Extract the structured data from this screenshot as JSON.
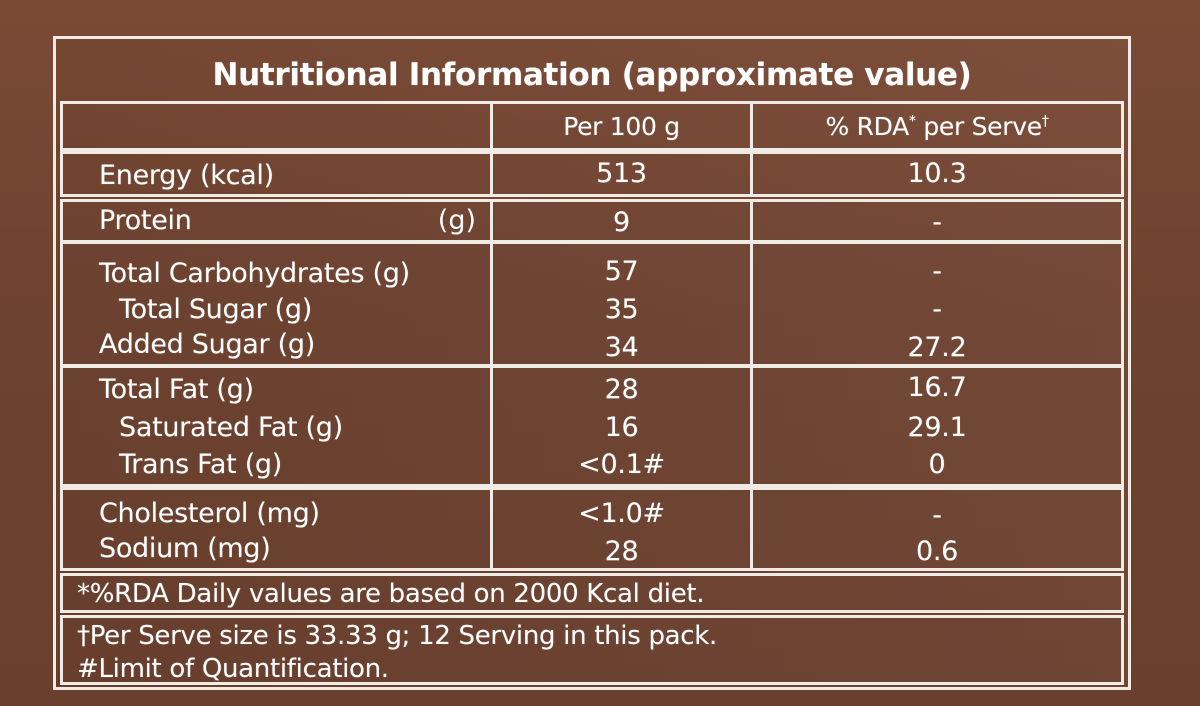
{
  "title": "Nutritional Information (approximate value)",
  "columns": {
    "per100g": "Per 100 g",
    "rda_prefix": "% RDA",
    "rda_star": "*",
    "rda_suffix": " per Serve",
    "rda_dagger": "†"
  },
  "rows": {
    "energy": {
      "label": "Energy (kcal)",
      "per100": "513",
      "rda": "10.3"
    },
    "protein": {
      "label": "Protein",
      "unit": "(g)",
      "per100": "9",
      "rda": "-"
    },
    "carbs": {
      "label": "Total Carbohydrates (g)",
      "per100": "57",
      "rda": "-"
    },
    "total_sugar": {
      "label": "Total Sugar (g)",
      "per100": "35",
      "rda": "-"
    },
    "added_sugar": {
      "label": "Added Sugar (g)",
      "per100": "34",
      "rda": "27.2"
    },
    "total_fat": {
      "label": "Total Fat (g)",
      "per100": "28",
      "rda": "16.7"
    },
    "sat_fat": {
      "label": "Saturated Fat (g)",
      "per100": "16",
      "rda": "29.1"
    },
    "trans_fat": {
      "label": "Trans Fat (g)",
      "per100": "<0.1#",
      "rda": "0"
    },
    "cholesterol": {
      "label": "Cholesterol (mg)",
      "per100": "<1.0#",
      "rda": "-"
    },
    "sodium": {
      "label": "Sodium (mg)",
      "per100": "28",
      "rda": "0.6"
    }
  },
  "notes": {
    "rda": "*%RDA Daily values are based on 2000 Kcal diet.",
    "serve": "†Per Serve size is 33.33 g; 12 Serving in this pack.",
    "limit": "#Limit of Quantification."
  }
}
